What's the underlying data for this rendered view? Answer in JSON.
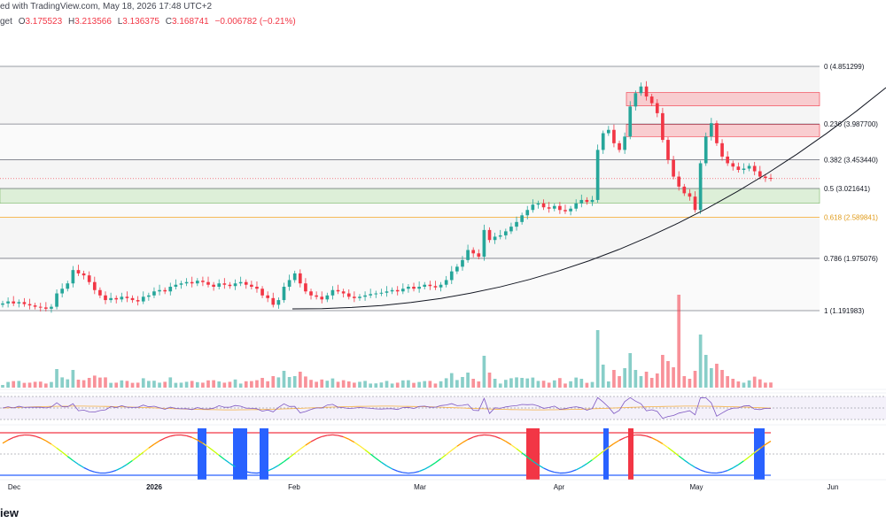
{
  "header": {
    "published_text": "ed with TradingView.com, May 18, 2026 17:48 UTC+2",
    "symbol_fragment": "get",
    "ohlc": [
      {
        "label": "O",
        "value": "3.175523"
      },
      {
        "label": "H",
        "value": "3.213566"
      },
      {
        "label": "L",
        "value": "3.136375"
      },
      {
        "label": "C",
        "value": "3.168741"
      }
    ],
    "change": "−0.006782 (−0.21%)"
  },
  "logo_text": "iew",
  "colors": {
    "up": "#26a69a",
    "down": "#f23645",
    "fib_line": "#787b86",
    "fib_0618": "#f5b042",
    "supply_zone": "#f8c4c8",
    "demand_zone": "#d7ecd1",
    "rsi_line": "#7e57c2",
    "rsi_ma": "#f5b042",
    "osc_top": "#f23645",
    "osc_bottom": "#2962ff",
    "osc_blue_bars": "#2962ff",
    "osc_red_bars": "#f23645",
    "curve": "#131722",
    "text": "#131722",
    "muted": "#787b86"
  },
  "chart_data": {
    "type": "candlestick",
    "time_axis_labels": [
      "Dec",
      "2026",
      "Feb",
      "Mar",
      "Apr",
      "May",
      "Jun"
    ],
    "y_range": [
      1.0,
      5.0
    ],
    "fibonacci": [
      {
        "level": "0",
        "value": 4.851299,
        "label": "0 (4.851299)"
      },
      {
        "level": "0.236",
        "value": 3.9877,
        "label": "0.236 (3.987700)"
      },
      {
        "level": "0.382",
        "value": 3.45344,
        "label": "0.382 (3.453440)"
      },
      {
        "level": "0.5",
        "value": 3.021641,
        "label": "0.5 (3.021641)"
      },
      {
        "level": "0.618",
        "value": 2.589841,
        "label": "0.618 (2.589841)"
      },
      {
        "level": "0.786",
        "value": 1.975076,
        "label": "0.786 (1.975076)"
      },
      {
        "level": "1",
        "value": 1.191983,
        "label": "1 (1.191983)"
      }
    ],
    "zones": [
      {
        "type": "supply",
        "from": 4.46,
        "to": 4.26
      },
      {
        "type": "supply",
        "from": 3.98,
        "to": 3.8
      },
      {
        "type": "demand",
        "from": 3.02,
        "to": 2.8
      }
    ],
    "price_series": [
      1.3,
      1.33,
      1.3,
      1.32,
      1.29,
      1.27,
      1.25,
      1.24,
      1.22,
      1.25,
      1.45,
      1.52,
      1.6,
      1.8,
      1.75,
      1.72,
      1.62,
      1.5,
      1.42,
      1.35,
      1.38,
      1.36,
      1.4,
      1.38,
      1.35,
      1.33,
      1.4,
      1.42,
      1.48,
      1.5,
      1.48,
      1.55,
      1.58,
      1.6,
      1.62,
      1.6,
      1.64,
      1.62,
      1.58,
      1.55,
      1.6,
      1.58,
      1.56,
      1.6,
      1.62,
      1.58,
      1.55,
      1.52,
      1.42,
      1.38,
      1.28,
      1.35,
      1.55,
      1.65,
      1.75,
      1.6,
      1.48,
      1.42,
      1.4,
      1.36,
      1.42,
      1.5,
      1.48,
      1.45,
      1.4,
      1.38,
      1.4,
      1.42,
      1.44,
      1.45,
      1.46,
      1.48,
      1.5,
      1.48,
      1.52,
      1.55,
      1.52,
      1.55,
      1.58,
      1.56,
      1.54,
      1.58,
      1.65,
      1.78,
      1.85,
      1.95,
      2.1,
      2.05,
      2.0,
      2.4,
      2.25,
      2.3,
      2.32,
      2.38,
      2.45,
      2.52,
      2.62,
      2.7,
      2.78,
      2.8,
      2.74,
      2.72,
      2.76,
      2.7,
      2.68,
      2.72,
      2.8,
      2.85,
      2.82,
      2.85,
      3.6,
      3.85,
      3.9,
      3.7,
      3.6,
      3.8,
      4.25,
      4.45,
      4.55,
      4.4,
      4.3,
      4.15,
      3.75,
      3.45,
      3.2,
      3.05,
      2.95,
      2.9,
      2.7,
      3.4,
      3.8,
      4.0,
      3.7,
      3.5,
      3.4,
      3.35,
      3.3,
      3.32,
      3.36,
      3.28,
      3.2,
      3.18,
      3.17
    ],
    "price_series_note": "",
    "volume_peak_label": "",
    "rsi": {
      "range": [
        0,
        100
      ],
      "levels": [
        70,
        50,
        30
      ]
    },
    "oscillator": {
      "range": [
        0,
        100
      ],
      "levels": [
        80,
        50,
        20
      ]
    }
  }
}
